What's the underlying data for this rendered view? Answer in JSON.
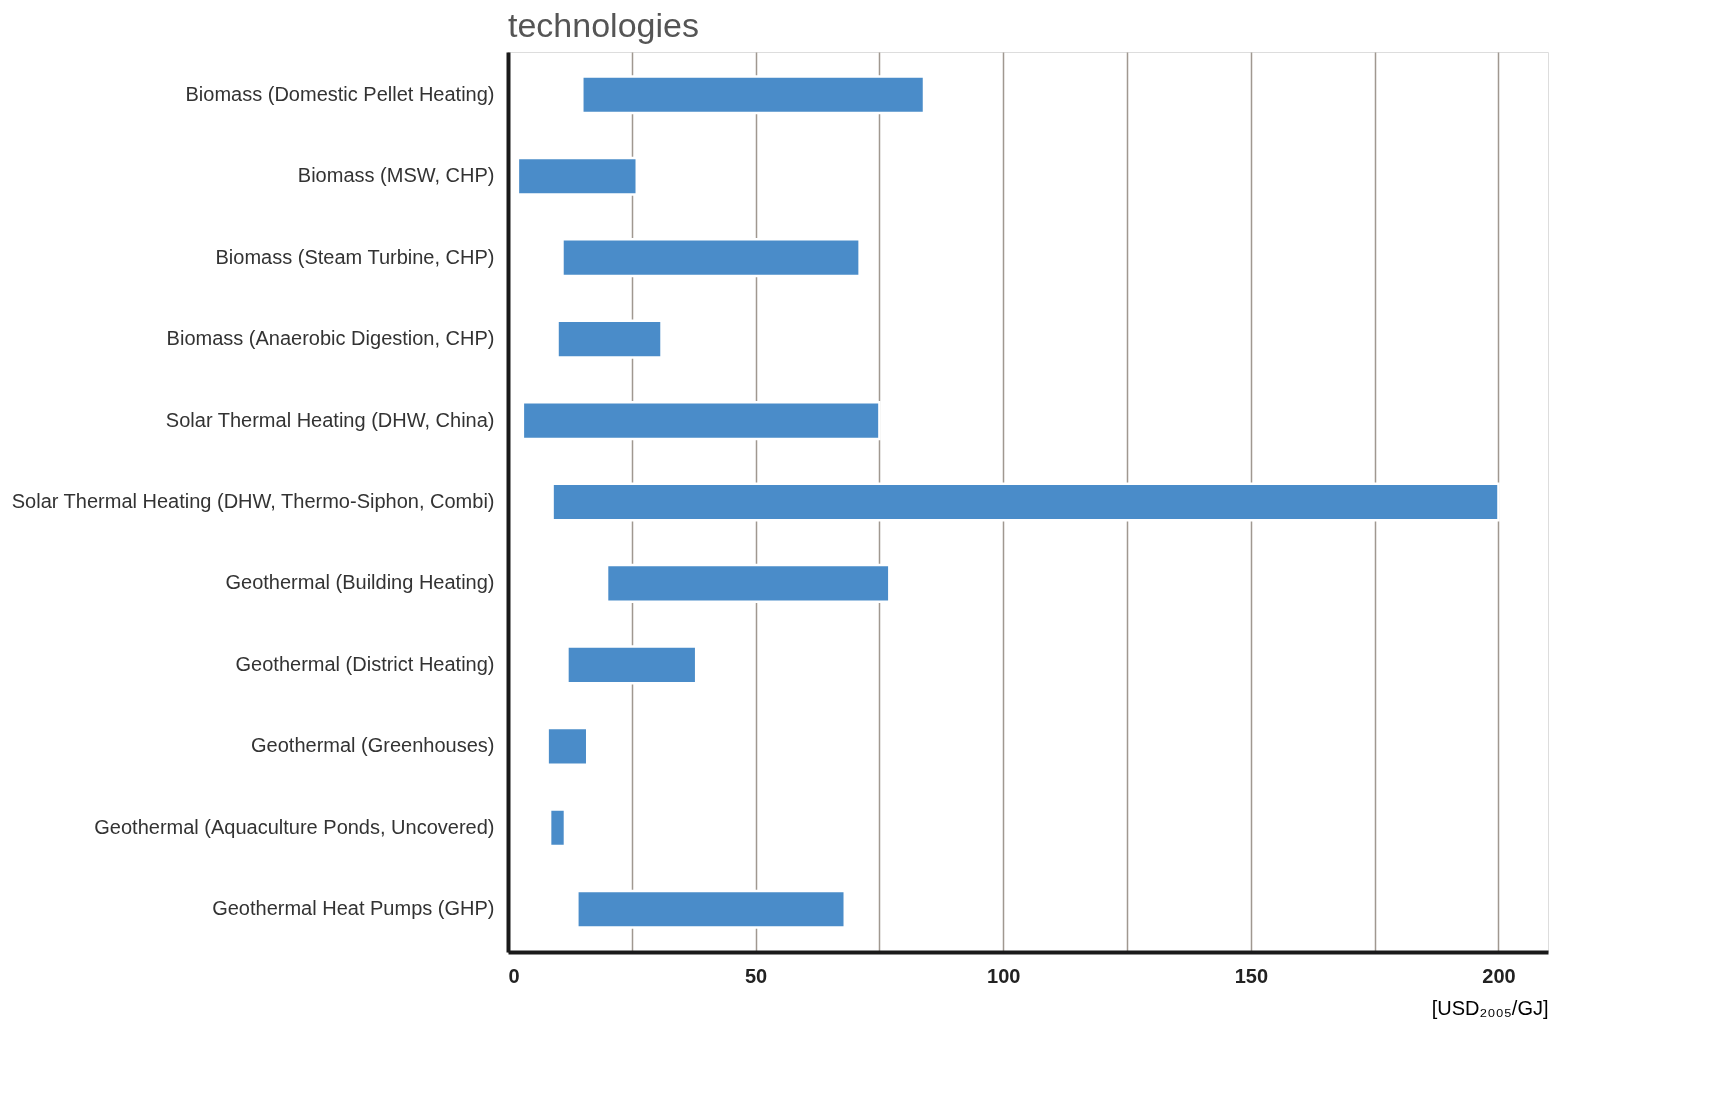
{
  "chart_data": {
    "type": "bar",
    "orientation": "horizontal",
    "title": "technologies",
    "xlabel": "[USD₂₀₀₅/GJ]",
    "categories": [
      "Biomass (Domestic Pellet Heating)",
      "Biomass (MSW, CHP)",
      "Biomass (Steam Turbine, CHP)",
      "Biomass (Anaerobic Digestion, CHP)",
      "Solar Thermal Heating (DHW, China)",
      "Solar Thermal Heating (DHW, Thermo-Siphon, Combi)",
      "Geothermal (Building Heating)",
      "Geothermal (District Heating)",
      "Geothermal (Greenhouses)",
      "Geothermal (Aquaculture Ponds, Uncovered)",
      "Geothermal Heat Pumps (GHP)"
    ],
    "base": [
      15,
      2,
      11,
      10,
      3,
      9,
      20,
      12,
      8,
      8.5,
      14
    ],
    "values": [
      69,
      24,
      60,
      21,
      72,
      191,
      57,
      26,
      8,
      3,
      54
    ],
    "color": "#4a8cc9",
    "xlim": [
      0,
      210
    ],
    "xticks": [
      0,
      {
        "value": 25,
        "label": null
      },
      50,
      {
        "value": 75,
        "label": null
      },
      100,
      {
        "value": 125,
        "label": null
      },
      150,
      {
        "value": 175,
        "label": null
      },
      200
    ],
    "grid": "x"
  }
}
